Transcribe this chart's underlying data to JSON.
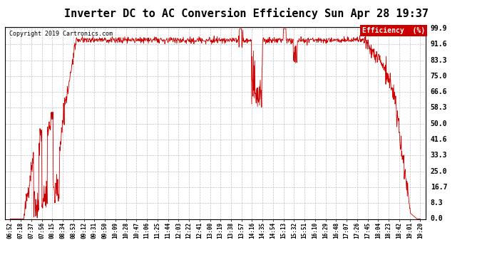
{
  "title": "Inverter DC to AC Conversion Efficiency Sun Apr 28 19:37",
  "copyright_text": "Copyright 2019 Cartronics.com",
  "legend_label": "Efficiency  (%)",
  "legend_bg": "#cc0000",
  "legend_fg": "#ffffff",
  "line_color": "#cc0000",
  "background_color": "#ffffff",
  "grid_color": "#c0c0c0",
  "yticks": [
    0.0,
    8.3,
    16.7,
    25.0,
    33.3,
    41.6,
    50.0,
    58.3,
    66.6,
    75.0,
    83.3,
    91.6,
    99.9
  ],
  "ytick_labels": [
    "0.0",
    "8.3",
    "16.7",
    "25.0",
    "33.3",
    "41.6",
    "50.0",
    "58.3",
    "66.6",
    "75.0",
    "83.3",
    "91.6",
    "99.9"
  ],
  "xtick_labels": [
    "06:52",
    "07:18",
    "07:37",
    "07:56",
    "08:15",
    "08:34",
    "08:53",
    "09:12",
    "09:31",
    "09:50",
    "10:09",
    "10:28",
    "10:47",
    "11:06",
    "11:25",
    "11:44",
    "12:03",
    "12:22",
    "12:41",
    "13:00",
    "13:19",
    "13:38",
    "13:57",
    "14:16",
    "14:35",
    "14:54",
    "15:13",
    "15:32",
    "15:51",
    "16:10",
    "16:29",
    "16:48",
    "17:07",
    "17:26",
    "17:45",
    "18:04",
    "18:23",
    "18:42",
    "19:01",
    "19:20"
  ],
  "ylim_min": 0.0,
  "ylim_max": 99.9,
  "title_fontsize": 11,
  "tick_fontsize": 7,
  "xtick_fontsize": 5.5
}
